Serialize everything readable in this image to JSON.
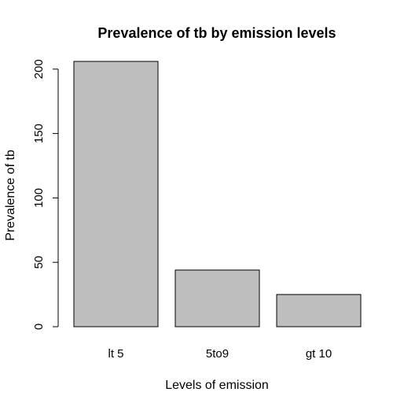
{
  "chart_data": {
    "type": "bar",
    "title": "Prevalence of tb by emission levels",
    "xlabel": "Levels of emission",
    "ylabel": "Prevalence of tb",
    "categories": [
      "lt 5",
      "5to9",
      "gt 10"
    ],
    "values": [
      206,
      44,
      25
    ],
    "ylim": [
      0,
      206
    ],
    "yticks": [
      0,
      50,
      100,
      150,
      200
    ],
    "grid": false,
    "bar_color": "#bebebe",
    "outline_color": "#000000"
  }
}
